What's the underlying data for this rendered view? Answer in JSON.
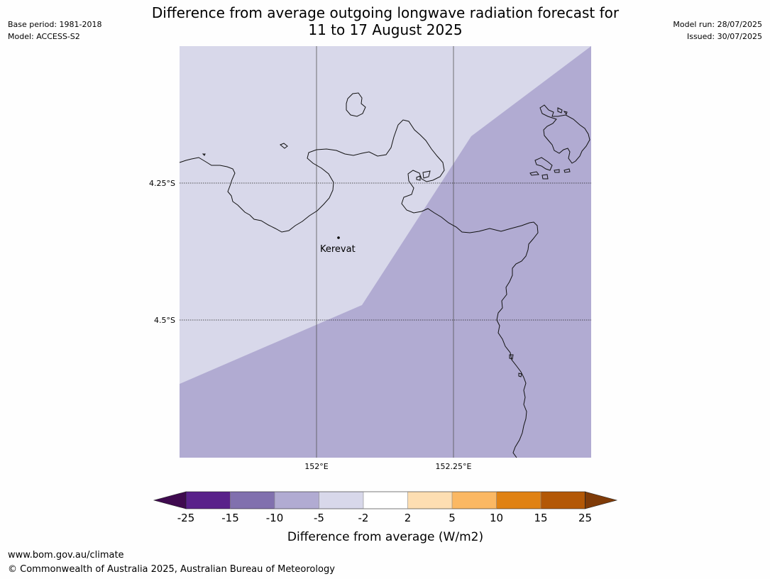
{
  "header": {
    "title_line1": "Difference from average outgoing longwave radiation forecast for",
    "title_line2": "11 to 17 August 2025",
    "base_period": "Base period: 1981-2018",
    "model": "Model: ACCESS-S2",
    "model_run": "Model run: 28/07/2025",
    "issued": "Issued: 30/07/2025"
  },
  "map": {
    "place": "Kerevat",
    "lat_labels": [
      "4.25°S",
      "4.5°S"
    ],
    "lon_labels": [
      "152°E",
      "152.25°E"
    ],
    "fill_colors": {
      "light": "#d8d8ea",
      "medium": "#b1abd2"
    }
  },
  "colorbar": {
    "title": "Difference from average (W/m2)",
    "ticks": [
      "-25",
      "-15",
      "-10",
      "-5",
      "-2",
      "2",
      "5",
      "10",
      "15",
      "25"
    ],
    "colors": [
      "#3f0a4f",
      "#59218a",
      "#8170ae",
      "#b1abd2",
      "#d8d8ea",
      "#ffffff",
      "#fddeb2",
      "#fbb863",
      "#e08213",
      "#b35806",
      "#7f3b08"
    ]
  },
  "footer": {
    "url": "www.bom.gov.au/climate",
    "copyright": "© Commonwealth of Australia 2025, Australian Bureau of Meteorology"
  }
}
